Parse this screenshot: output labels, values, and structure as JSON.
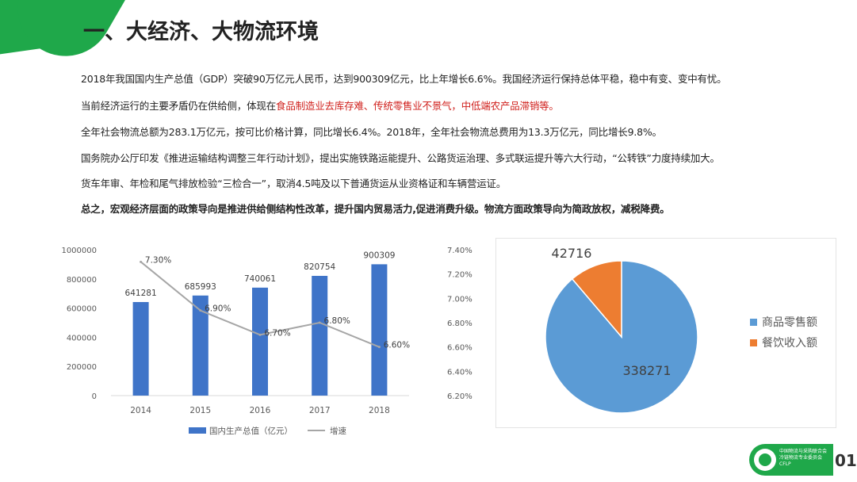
{
  "header": {
    "title": "一、大经济、大物流环境"
  },
  "paragraphs": [
    {
      "text": "2018年我国国内生产总值（GDP）突破90万亿元人民币，达到900309亿元，比上年增长6.6%。我国经济运行保持总体平稳，稳中有变、变中有忧。"
    },
    {
      "text_before": "当前经济运行的主要矛盾仍在供给侧，体现在",
      "text_red": "食品制造业去库存难、传统零售业不景气，中低端农产品滞销等。"
    },
    {
      "text": "全年社会物流总额为283.1万亿元，按可比价格计算，同比增长6.4%。2018年，全年社会物流总费用为13.3万亿元，同比增长9.8%。"
    },
    {
      "text": "国务院办公厅印发《推进运输结构调整三年行动计划》，提出实施铁路运能提升、公路货运治理、多式联运提升等六大行动，“公转铁”力度持续加大。"
    },
    {
      "text": "货车年审、年检和尾气排放检验“三检合一”，取消4.5吨及以下普通货运从业资格证和车辆营运证。"
    },
    {
      "text": "总之，宏观经济层面的政策导向是推进供给侧结构性改革，提升国内贸易活力,促进消费升级。物流方面政策导向为简政放权，减税降费。"
    }
  ],
  "chart_data": [
    {
      "type": "bar",
      "categories": [
        "2014",
        "2015",
        "2016",
        "2017",
        "2018"
      ],
      "series": [
        {
          "name": "国内生产总值（亿元）",
          "values": [
            641281,
            685993,
            740061,
            820754,
            900309
          ],
          "color": "#3f74c8",
          "axis": "left"
        },
        {
          "name": "增速",
          "type": "line",
          "values": [
            7.3,
            6.9,
            6.7,
            6.8,
            6.6
          ],
          "labels": [
            "7.30%",
            "6.90%",
            "6.70%",
            "6.80%",
            "6.60%"
          ],
          "color": "#a6a6a6",
          "axis": "right"
        }
      ],
      "left_ticks": [
        "0",
        "200000",
        "400000",
        "600000",
        "800000",
        "1000000"
      ],
      "right_ticks": [
        "6.20%",
        "6.40%",
        "6.60%",
        "6.80%",
        "7.00%",
        "7.20%",
        "7.40%"
      ],
      "ylim": [
        0,
        1000000
      ],
      "y2lim": [
        6.2,
        7.4
      ],
      "legend": "bottom"
    },
    {
      "type": "pie",
      "categories": [
        "商品零售额",
        "餐饮收入额"
      ],
      "values": [
        338271,
        42716
      ],
      "value_labels": [
        "338271",
        "42716"
      ],
      "colors": [
        "#5b9bd5",
        "#ed7d31"
      ],
      "legend": "right"
    }
  ],
  "footer": {
    "org_line1": "中国物流与采购联合会",
    "org_line2": "冷链物流专业委员会",
    "org_abbr": "CFLP",
    "page_number": "01"
  }
}
